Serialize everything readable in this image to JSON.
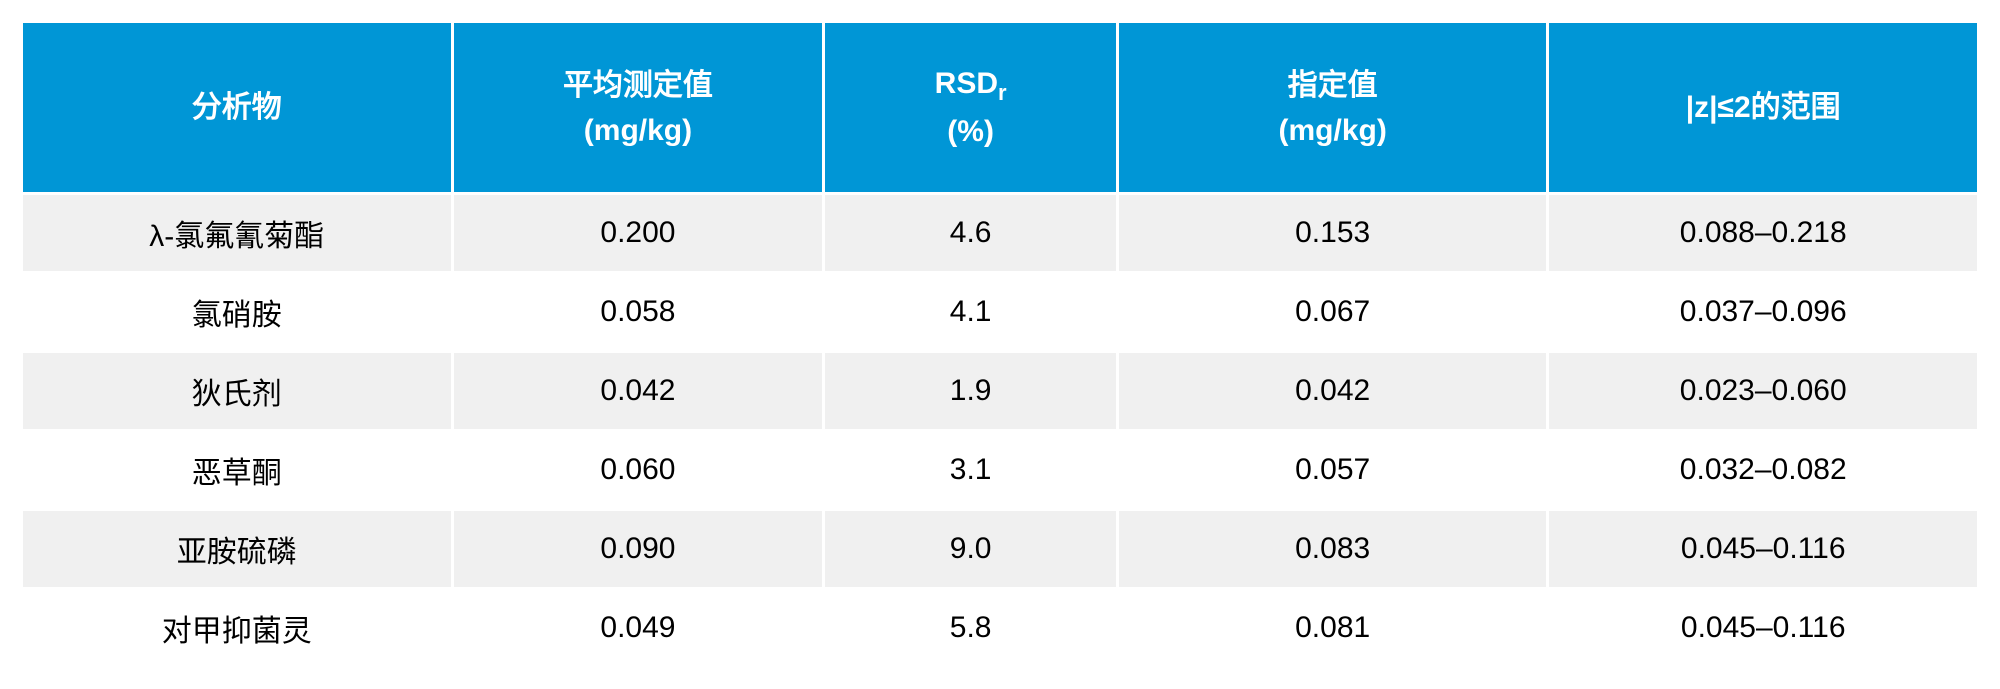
{
  "table": {
    "type": "table",
    "header_bg_color": "#0096d6",
    "header_text_color": "#ffffff",
    "row_bg_color": "#ffffff",
    "row_alt_bg_color": "#f0f0f0",
    "border_color": "#ffffff",
    "cell_text_color": "#000000",
    "header_fontsize": 30,
    "cell_fontsize": 30,
    "columns": [
      {
        "label": "分析物",
        "width": "22%",
        "align": "center"
      },
      {
        "label": "平均测定值\n(mg/kg)",
        "width": "19%",
        "align": "center"
      },
      {
        "label_html": "RSD<sub>r</sub>\n(%)",
        "label": "RSDr (%)",
        "width": "15%",
        "align": "center"
      },
      {
        "label": "指定值\n(mg/kg)",
        "width": "22%",
        "align": "center"
      },
      {
        "label": "|z|≤2的范围",
        "width": "22%",
        "align": "center"
      }
    ],
    "rows": [
      [
        "λ-氯氟氰菊酯",
        "0.200",
        "4.6",
        "0.153",
        "0.088–0.218"
      ],
      [
        "氯硝胺",
        "0.058",
        "4.1",
        "0.067",
        "0.037–0.096"
      ],
      [
        "狄氏剂",
        "0.042",
        "1.9",
        "0.042",
        "0.023–0.060"
      ],
      [
        "恶草酮",
        "0.060",
        "3.1",
        "0.057",
        "0.032–0.082"
      ],
      [
        "亚胺硫磷",
        "0.090",
        "9.0",
        "0.083",
        "0.045–0.116"
      ],
      [
        "对甲抑菌灵",
        "0.049",
        "5.8",
        "0.081",
        "0.045–0.116"
      ]
    ]
  }
}
